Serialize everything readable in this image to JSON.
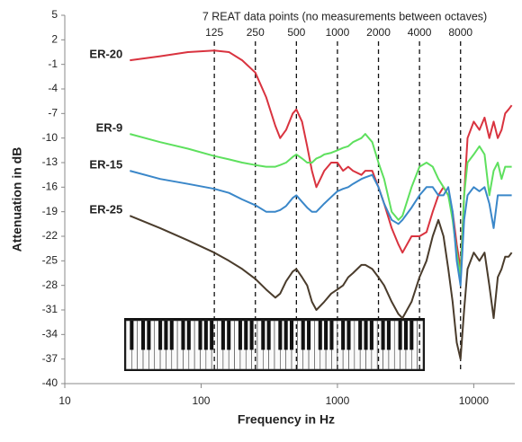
{
  "chart_data": {
    "type": "line",
    "annotation": "7 REAT data points (no measurements between octaves)",
    "xlabel": "Frequency in Hz",
    "ylabel": "Attenuation in dB",
    "xscale": "log",
    "xlim": [
      10,
      20000
    ],
    "xticks": [
      10,
      100,
      1000,
      10000
    ],
    "ylim": [
      -40,
      5
    ],
    "yticks": [
      5,
      2,
      -1,
      -4,
      -7,
      -10,
      -13,
      -16,
      -19,
      -22,
      -25,
      -28,
      -31,
      -34,
      -37,
      -40
    ],
    "reference_lines": [
      125,
      250,
      500,
      1000,
      2000,
      4000,
      8000
    ],
    "x": [
      30,
      50,
      80,
      125,
      160,
      200,
      250,
      300,
      350,
      380,
      420,
      470,
      500,
      550,
      600,
      650,
      700,
      750,
      800,
      900,
      1000,
      1100,
      1200,
      1300,
      1500,
      1600,
      1800,
      2000,
      2200,
      2500,
      2800,
      3000,
      3500,
      4000,
      4500,
      5000,
      5500,
      6000,
      6500,
      7000,
      7500,
      8000,
      8500,
      9000,
      10000,
      11000,
      12000,
      13000,
      14000,
      15000,
      16000,
      17000,
      18000,
      19000
    ],
    "series": [
      {
        "name": "ER-20",
        "color": "#d9333f",
        "values": [
          -0.5,
          0,
          0.5,
          0.7,
          0.5,
          -0.5,
          -2,
          -5,
          -8.5,
          -10,
          -9,
          -7,
          -6.5,
          -8,
          -11,
          -14,
          -16,
          -15,
          -14,
          -13,
          -13,
          -14,
          -13.5,
          -14,
          -14.5,
          -14,
          -14,
          -16,
          -18,
          -21,
          -23,
          -24,
          -22,
          -22,
          -21.5,
          -19,
          -17,
          -16,
          -17,
          -19,
          -23,
          -26,
          -17,
          -10,
          -8,
          -9,
          -7.5,
          -10,
          -8,
          -10,
          -9,
          -7,
          -6.5,
          -6
        ]
      },
      {
        "name": "ER-9",
        "color": "#5ee05e",
        "values": [
          -9.5,
          -10.5,
          -11.3,
          -12.2,
          -12.6,
          -13,
          -13.3,
          -13.5,
          -13.5,
          -13.3,
          -13,
          -12.3,
          -12,
          -12.5,
          -13,
          -13,
          -12.5,
          -12.3,
          -12,
          -11.8,
          -11.5,
          -11.2,
          -11,
          -10.5,
          -10,
          -9.5,
          -10.5,
          -13,
          -15,
          -19,
          -20,
          -19.5,
          -16,
          -13.5,
          -13,
          -13.5,
          -15,
          -16,
          -17,
          -20,
          -24,
          -27,
          -17,
          -13,
          -12,
          -11,
          -12,
          -17,
          -14,
          -13,
          -15,
          -13.5,
          -13.5,
          -13.5
        ]
      },
      {
        "name": "ER-15",
        "color": "#3a87c9",
        "values": [
          -14,
          -15,
          -15.6,
          -16.2,
          -16.7,
          -17.5,
          -18.2,
          -19,
          -19,
          -18.8,
          -18.3,
          -17.3,
          -17,
          -17.8,
          -18.5,
          -19,
          -19,
          -18.5,
          -18,
          -17.2,
          -16.5,
          -16.2,
          -16,
          -15.6,
          -15,
          -14.8,
          -14.5,
          -16,
          -18,
          -20,
          -20.5,
          -20,
          -18.5,
          -17,
          -16,
          -16,
          -17,
          -17,
          -16,
          -19,
          -25,
          -28,
          -20,
          -17,
          -16,
          -16.5,
          -16,
          -18,
          -21,
          -17,
          -17,
          -17,
          -17,
          -17
        ]
      },
      {
        "name": "ER-25",
        "color": "#4a3c2c",
        "values": [
          -19.5,
          -21,
          -22.5,
          -24,
          -25,
          -26,
          -27.2,
          -28.5,
          -29.5,
          -29,
          -27.5,
          -26.3,
          -26,
          -27,
          -28,
          -30,
          -31,
          -30.5,
          -30,
          -29,
          -28.5,
          -28,
          -27,
          -26.5,
          -25.5,
          -25.5,
          -26,
          -27,
          -28,
          -30,
          -31.5,
          -32,
          -30,
          -27,
          -25,
          -22,
          -20,
          -22,
          -26,
          -30,
          -35,
          -37,
          -31,
          -26,
          -24,
          -25,
          -24,
          -28,
          -32,
          -27,
          -26,
          -24.5,
          -24.5,
          -24
        ]
      }
    ]
  }
}
